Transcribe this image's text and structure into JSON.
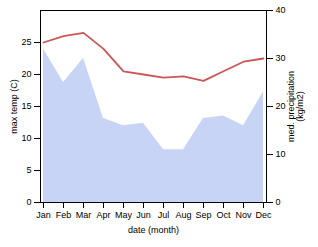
{
  "chart_data": {
    "type": "line",
    "categories": [
      "Jan",
      "Feb",
      "Mar",
      "Apr",
      "May",
      "Jun",
      "Jul",
      "Aug",
      "Sep",
      "Oct",
      "Nov",
      "Dec"
    ],
    "series": [
      {
        "type": "area",
        "axis": "y2",
        "color": "#c8d4f5",
        "values": [
          32.0,
          25.0,
          30.0,
          17.5,
          16.0,
          16.5,
          11.0,
          11.0,
          17.5,
          18.0,
          16.0,
          23.0
        ]
      },
      {
        "type": "line",
        "color": "#cc5555",
        "values": [
          25.0,
          26.0,
          26.5,
          24.0,
          20.5,
          20.0,
          19.5,
          19.7,
          19.0,
          20.5,
          22.0,
          22.5
        ]
      }
    ],
    "xlabel": "date (month)",
    "ylabel": "max temp (C)",
    "y2label": "med. precipitation\n(kg/m2)",
    "ylim": [
      0,
      30
    ],
    "yticks": [
      0,
      5,
      10,
      15,
      20,
      25
    ],
    "y2lim": [
      0,
      40
    ],
    "y2ticks": [
      0,
      10,
      20,
      30,
      40
    ]
  }
}
